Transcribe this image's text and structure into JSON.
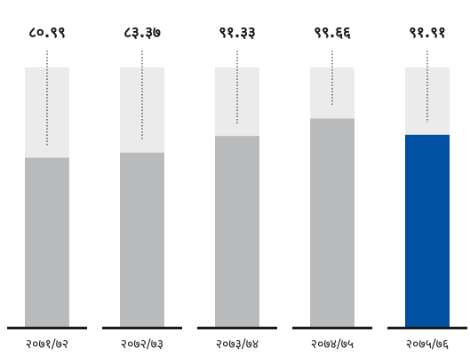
{
  "chart_data": {
    "type": "bar",
    "categories": [
      "२०७१/७२",
      "२०७२/७३",
      "२०७३/७४",
      "२०७४/७५",
      "२०७५/७६"
    ],
    "values": [
      80.99,
      83.37,
      91.33,
      99.66,
      91.91
    ],
    "value_labels": [
      "८०.९९",
      "८३.३७",
      "९१.३३",
      "९९.६६",
      "९१.९१"
    ],
    "ylim": [
      0,
      124
    ],
    "grid": false,
    "legend": "none",
    "colors": {
      "bar": "#b9babc",
      "highlight_bar": "#0050a3",
      "track": "#ebebeb",
      "leader": "#1a1a1a",
      "baseline": "#1a1a1a"
    },
    "highlight_index": 4
  }
}
